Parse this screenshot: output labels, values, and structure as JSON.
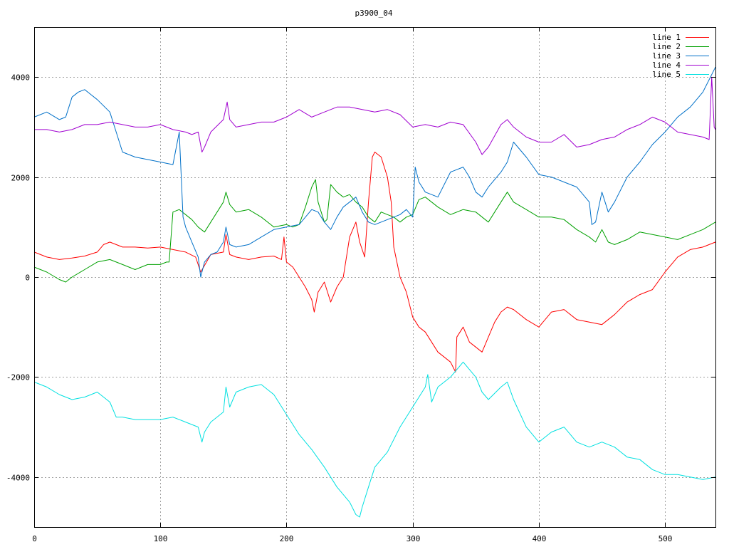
{
  "chart_data": {
    "type": "line",
    "title": "p3900_04",
    "xlabel": "",
    "ylabel": "",
    "xlim": [
      0,
      540
    ],
    "ylim": [
      -5000,
      5000
    ],
    "x_ticks": [
      0,
      100,
      200,
      300,
      400,
      500
    ],
    "y_ticks": [
      -4000,
      -2000,
      0,
      2000,
      4000
    ],
    "x_tick_labels": [
      "0",
      "100",
      "200",
      "300",
      "400",
      "500"
    ],
    "y_tick_labels": [
      "-4000",
      "-2000",
      "0",
      "2000",
      "4000"
    ],
    "grid": true,
    "legend_position": "top-right",
    "colors": {
      "line 1": "#ff0000",
      "line 2": "#00a000",
      "line 3": "#0070c8",
      "line 4": "#a000d0",
      "line 5": "#00e0e0"
    },
    "series": [
      {
        "name": "line 1",
        "x": [
          0,
          10,
          20,
          30,
          40,
          50,
          55,
          60,
          70,
          80,
          90,
          100,
          110,
          120,
          128,
          132,
          140,
          150,
          152,
          155,
          160,
          170,
          180,
          190,
          196,
          198,
          200,
          205,
          210,
          215,
          220,
          222,
          225,
          230,
          235,
          240,
          245,
          250,
          255,
          258,
          262,
          265,
          268,
          270,
          275,
          280,
          283,
          285,
          290,
          295,
          300,
          305,
          310,
          315,
          320,
          325,
          330,
          334,
          335,
          340,
          345,
          350,
          355,
          360,
          365,
          370,
          375,
          380,
          390,
          400,
          410,
          420,
          430,
          440,
          450,
          460,
          470,
          480,
          490,
          500,
          510,
          520,
          530,
          540
        ],
        "y": [
          500,
          400,
          350,
          380,
          420,
          500,
          650,
          700,
          600,
          600,
          580,
          600,
          550,
          500,
          400,
          100,
          450,
          500,
          850,
          450,
          400,
          350,
          400,
          420,
          350,
          800,
          300,
          200,
          0,
          -200,
          -450,
          -700,
          -300,
          -100,
          -500,
          -200,
          0,
          800,
          1100,
          700,
          400,
          1500,
          2400,
          2500,
          2400,
          2000,
          1500,
          600,
          0,
          -300,
          -800,
          -1000,
          -1100,
          -1300,
          -1500,
          -1600,
          -1700,
          -1900,
          -1200,
          -1000,
          -1300,
          -1400,
          -1500,
          -1200,
          -900,
          -700,
          -600,
          -650,
          -850,
          -1000,
          -700,
          -650,
          -850,
          -900,
          -950,
          -750,
          -500,
          -350,
          -250,
          100,
          400,
          550,
          600,
          700
        ]
      },
      {
        "name": "line 2",
        "x": [
          0,
          10,
          20,
          25,
          30,
          40,
          50,
          60,
          70,
          80,
          90,
          100,
          105,
          107,
          110,
          115,
          120,
          125,
          130,
          135,
          140,
          150,
          152,
          155,
          160,
          170,
          180,
          190,
          200,
          205,
          210,
          215,
          220,
          223,
          225,
          230,
          232,
          235,
          240,
          245,
          250,
          255,
          260,
          265,
          270,
          275,
          280,
          285,
          290,
          295,
          300,
          305,
          310,
          320,
          330,
          340,
          350,
          360,
          370,
          375,
          380,
          390,
          400,
          410,
          420,
          430,
          440,
          445,
          450,
          455,
          460,
          470,
          480,
          490,
          500,
          510,
          520,
          530,
          540
        ],
        "y": [
          200,
          100,
          -50,
          -100,
          0,
          150,
          300,
          350,
          250,
          150,
          250,
          250,
          300,
          300,
          1300,
          1350,
          1250,
          1150,
          1000,
          900,
          1100,
          1500,
          1700,
          1450,
          1300,
          1350,
          1200,
          1000,
          1050,
          1000,
          1050,
          1400,
          1800,
          1950,
          1500,
          1100,
          1150,
          1850,
          1700,
          1600,
          1650,
          1500,
          1400,
          1200,
          1100,
          1300,
          1250,
          1200,
          1100,
          1200,
          1250,
          1550,
          1600,
          1400,
          1250,
          1350,
          1300,
          1100,
          1500,
          1700,
          1500,
          1350,
          1200,
          1200,
          1150,
          950,
          800,
          700,
          950,
          700,
          650,
          750,
          900,
          850,
          800,
          750,
          850,
          950,
          1100
        ]
      },
      {
        "name": "line 3",
        "x": [
          0,
          10,
          20,
          25,
          30,
          35,
          40,
          50,
          60,
          65,
          70,
          80,
          90,
          100,
          110,
          115,
          118,
          120,
          125,
          130,
          132,
          135,
          140,
          145,
          150,
          152,
          155,
          160,
          170,
          180,
          190,
          200,
          210,
          215,
          220,
          225,
          230,
          235,
          240,
          245,
          250,
          255,
          260,
          265,
          270,
          280,
          290,
          295,
          300,
          302,
          305,
          310,
          320,
          330,
          340,
          345,
          350,
          355,
          360,
          370,
          375,
          380,
          390,
          400,
          410,
          420,
          430,
          440,
          442,
          445,
          450,
          455,
          460,
          470,
          480,
          490,
          500,
          510,
          520,
          530,
          540
        ],
        "y": [
          3200,
          3300,
          3150,
          3200,
          3600,
          3700,
          3750,
          3550,
          3300,
          2900,
          2500,
          2400,
          2350,
          2300,
          2250,
          2900,
          1200,
          1000,
          700,
          400,
          0,
          300,
          450,
          500,
          700,
          1000,
          650,
          600,
          650,
          800,
          950,
          1000,
          1050,
          1200,
          1350,
          1300,
          1100,
          950,
          1200,
          1400,
          1500,
          1600,
          1300,
          1100,
          1050,
          1150,
          1250,
          1350,
          1200,
          2200,
          1900,
          1700,
          1600,
          2100,
          2200,
          2000,
          1700,
          1600,
          1800,
          2100,
          2300,
          2700,
          2400,
          2050,
          2000,
          1900,
          1800,
          1500,
          1050,
          1100,
          1700,
          1300,
          1500,
          2000,
          2300,
          2650,
          2900,
          3200,
          3400,
          3700,
          4200
        ]
      },
      {
        "name": "line 4",
        "x": [
          0,
          10,
          20,
          30,
          40,
          50,
          60,
          70,
          80,
          90,
          100,
          110,
          120,
          125,
          130,
          133,
          135,
          140,
          150,
          153,
          155,
          160,
          170,
          180,
          190,
          200,
          210,
          220,
          230,
          240,
          250,
          260,
          270,
          280,
          290,
          300,
          310,
          320,
          330,
          340,
          350,
          355,
          360,
          370,
          375,
          380,
          390,
          400,
          410,
          420,
          430,
          440,
          450,
          460,
          470,
          480,
          490,
          500,
          510,
          520,
          530,
          535,
          537,
          539,
          540
        ],
        "y": [
          2950,
          2950,
          2900,
          2950,
          3050,
          3050,
          3100,
          3050,
          3000,
          3000,
          3050,
          2950,
          2900,
          2850,
          2900,
          2500,
          2600,
          2900,
          3150,
          3500,
          3150,
          3000,
          3050,
          3100,
          3100,
          3200,
          3350,
          3200,
          3300,
          3400,
          3400,
          3350,
          3300,
          3350,
          3250,
          3000,
          3050,
          3000,
          3100,
          3050,
          2700,
          2450,
          2600,
          3050,
          3150,
          3000,
          2800,
          2700,
          2700,
          2850,
          2600,
          2650,
          2750,
          2800,
          2950,
          3050,
          3200,
          3100,
          2900,
          2850,
          2800,
          2750,
          4000,
          3000,
          2950
        ]
      },
      {
        "name": "line 5",
        "x": [
          0,
          10,
          20,
          30,
          40,
          50,
          60,
          65,
          70,
          80,
          90,
          100,
          110,
          120,
          130,
          133,
          135,
          140,
          150,
          152,
          155,
          160,
          170,
          180,
          190,
          200,
          210,
          220,
          230,
          240,
          250,
          255,
          258,
          260,
          265,
          270,
          280,
          290,
          300,
          310,
          312,
          315,
          320,
          330,
          340,
          350,
          355,
          360,
          370,
          375,
          380,
          390,
          400,
          410,
          420,
          430,
          440,
          450,
          460,
          470,
          480,
          490,
          500,
          510,
          520,
          530,
          540
        ],
        "y": [
          -2100,
          -2200,
          -2350,
          -2450,
          -2400,
          -2300,
          -2500,
          -2800,
          -2800,
          -2850,
          -2850,
          -2850,
          -2800,
          -2900,
          -3000,
          -3300,
          -3100,
          -2900,
          -2700,
          -2200,
          -2600,
          -2300,
          -2200,
          -2150,
          -2350,
          -2750,
          -3150,
          -3450,
          -3800,
          -4200,
          -4500,
          -4750,
          -4800,
          -4600,
          -4200,
          -3800,
          -3500,
          -3000,
          -2600,
          -2200,
          -1950,
          -2500,
          -2200,
          -2000,
          -1700,
          -2000,
          -2300,
          -2450,
          -2200,
          -2100,
          -2450,
          -3000,
          -3300,
          -3100,
          -3000,
          -3300,
          -3400,
          -3300,
          -3400,
          -3600,
          -3650,
          -3850,
          -3950,
          -3950,
          -4000,
          -4050,
          -4000
        ]
      }
    ]
  }
}
